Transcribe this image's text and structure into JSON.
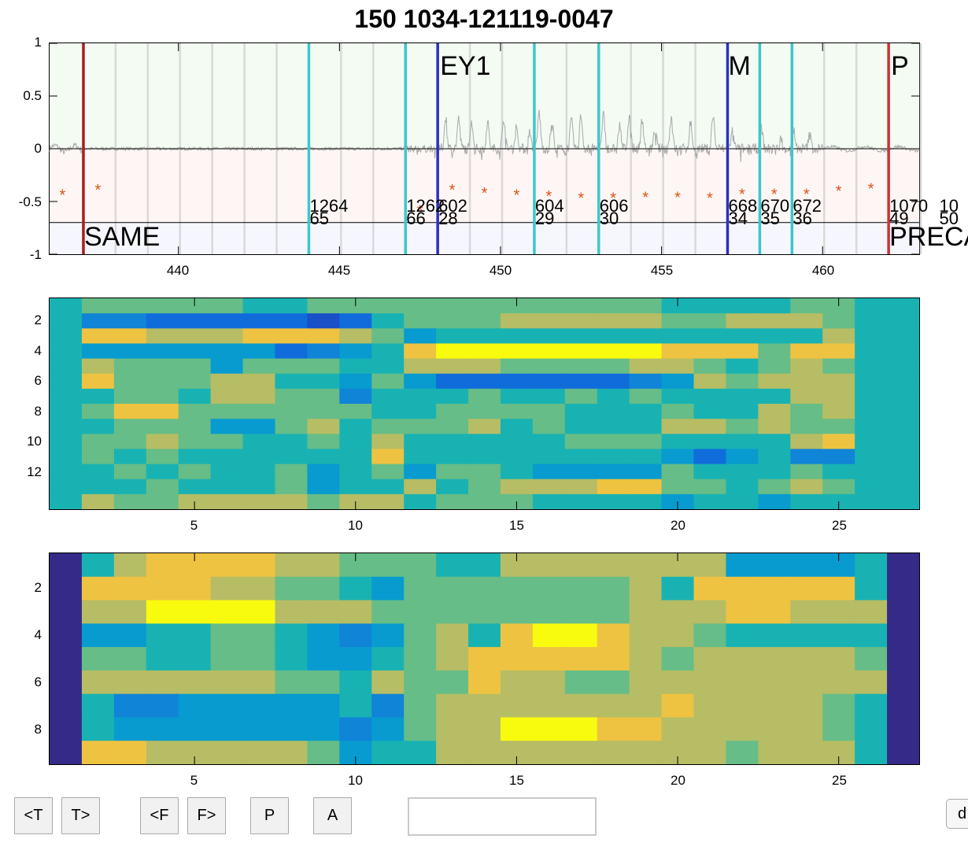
{
  "title": "150 1034-121119-0047",
  "colors": {
    "upper_band": "#f3fbf3",
    "lower_band": "#fdf6f4",
    "label_band": "#f6f6ff",
    "cyan_marker": "#3cc7cc",
    "blue_marker": "#2c2fbf",
    "red_marker": "#cc3333",
    "dark_red_marker": "#a51f1f",
    "star": "#d95319",
    "signal": "#a9a9a9"
  },
  "waveform_axes": {
    "y_ticks": [
      "1",
      "0.5",
      "0",
      "-0.5",
      "-1"
    ],
    "x_ticks": [
      "440",
      "445",
      "450",
      "455",
      "460"
    ],
    "upper_labels": [
      {
        "text": "EY1",
        "x": 448.1
      },
      {
        "text": "M",
        "x": 457.05
      },
      {
        "text": "P",
        "x": 462.1
      }
    ],
    "lower_labels": [
      {
        "text": "SAME",
        "x": 437.05
      },
      {
        "text": "PRECA",
        "x": 462.05
      }
    ],
    "number_labels": [
      {
        "line1": "1264",
        "line2": "65",
        "x": 444.05
      },
      {
        "line1": "1262",
        "line2": "66",
        "x": 447.05
      },
      {
        "line1": "602",
        "line2": "28",
        "x": 448.05
      },
      {
        "line1": "604",
        "line2": "29",
        "x": 451.05
      },
      {
        "line1": "606",
        "line2": "30",
        "x": 453.05
      },
      {
        "line1": "668",
        "line2": "34",
        "x": 457.05
      },
      {
        "line1": "670",
        "line2": "35",
        "x": 458.05
      },
      {
        "line1": "672",
        "line2": "36",
        "x": 459.05
      },
      {
        "line1": "1070",
        "line2": "49",
        "x": 462.05
      },
      {
        "line1": "10",
        "line2": "50",
        "x": 463.6
      }
    ],
    "stars": [
      {
        "x": 436.4,
        "y": -0.43
      },
      {
        "x": 437.5,
        "y": -0.38
      },
      {
        "x": 447.5,
        "y": -0.58
      },
      {
        "x": 448.5,
        "y": -0.38
      },
      {
        "x": 449.5,
        "y": -0.41
      },
      {
        "x": 450.5,
        "y": -0.43
      },
      {
        "x": 451.5,
        "y": -0.44
      },
      {
        "x": 452.5,
        "y": -0.46
      },
      {
        "x": 453.5,
        "y": -0.46
      },
      {
        "x": 454.5,
        "y": -0.45
      },
      {
        "x": 455.5,
        "y": -0.45
      },
      {
        "x": 456.5,
        "y": -0.46
      },
      {
        "x": 457.5,
        "y": -0.42
      },
      {
        "x": 458.5,
        "y": -0.42
      },
      {
        "x": 459.5,
        "y": -0.42
      },
      {
        "x": 460.5,
        "y": -0.39
      },
      {
        "x": 461.5,
        "y": -0.37
      }
    ]
  },
  "heatmap1": {
    "y_ticks": [
      "2",
      "4",
      "6",
      "8",
      "10",
      "12"
    ],
    "x_ticks": [
      "5",
      "10",
      "15",
      "20",
      "25"
    ]
  },
  "heatmap2": {
    "y_ticks": [
      "2",
      "4",
      "6",
      "8"
    ],
    "x_ticks": [
      "5",
      "10",
      "15",
      "20",
      "25"
    ]
  },
  "controls": {
    "prev_t": "<T",
    "next_t": "T>",
    "prev_f": "<F",
    "next_f": "F>",
    "p": "P",
    "a": "A",
    "edge": "d",
    "edit_value": ""
  }
}
